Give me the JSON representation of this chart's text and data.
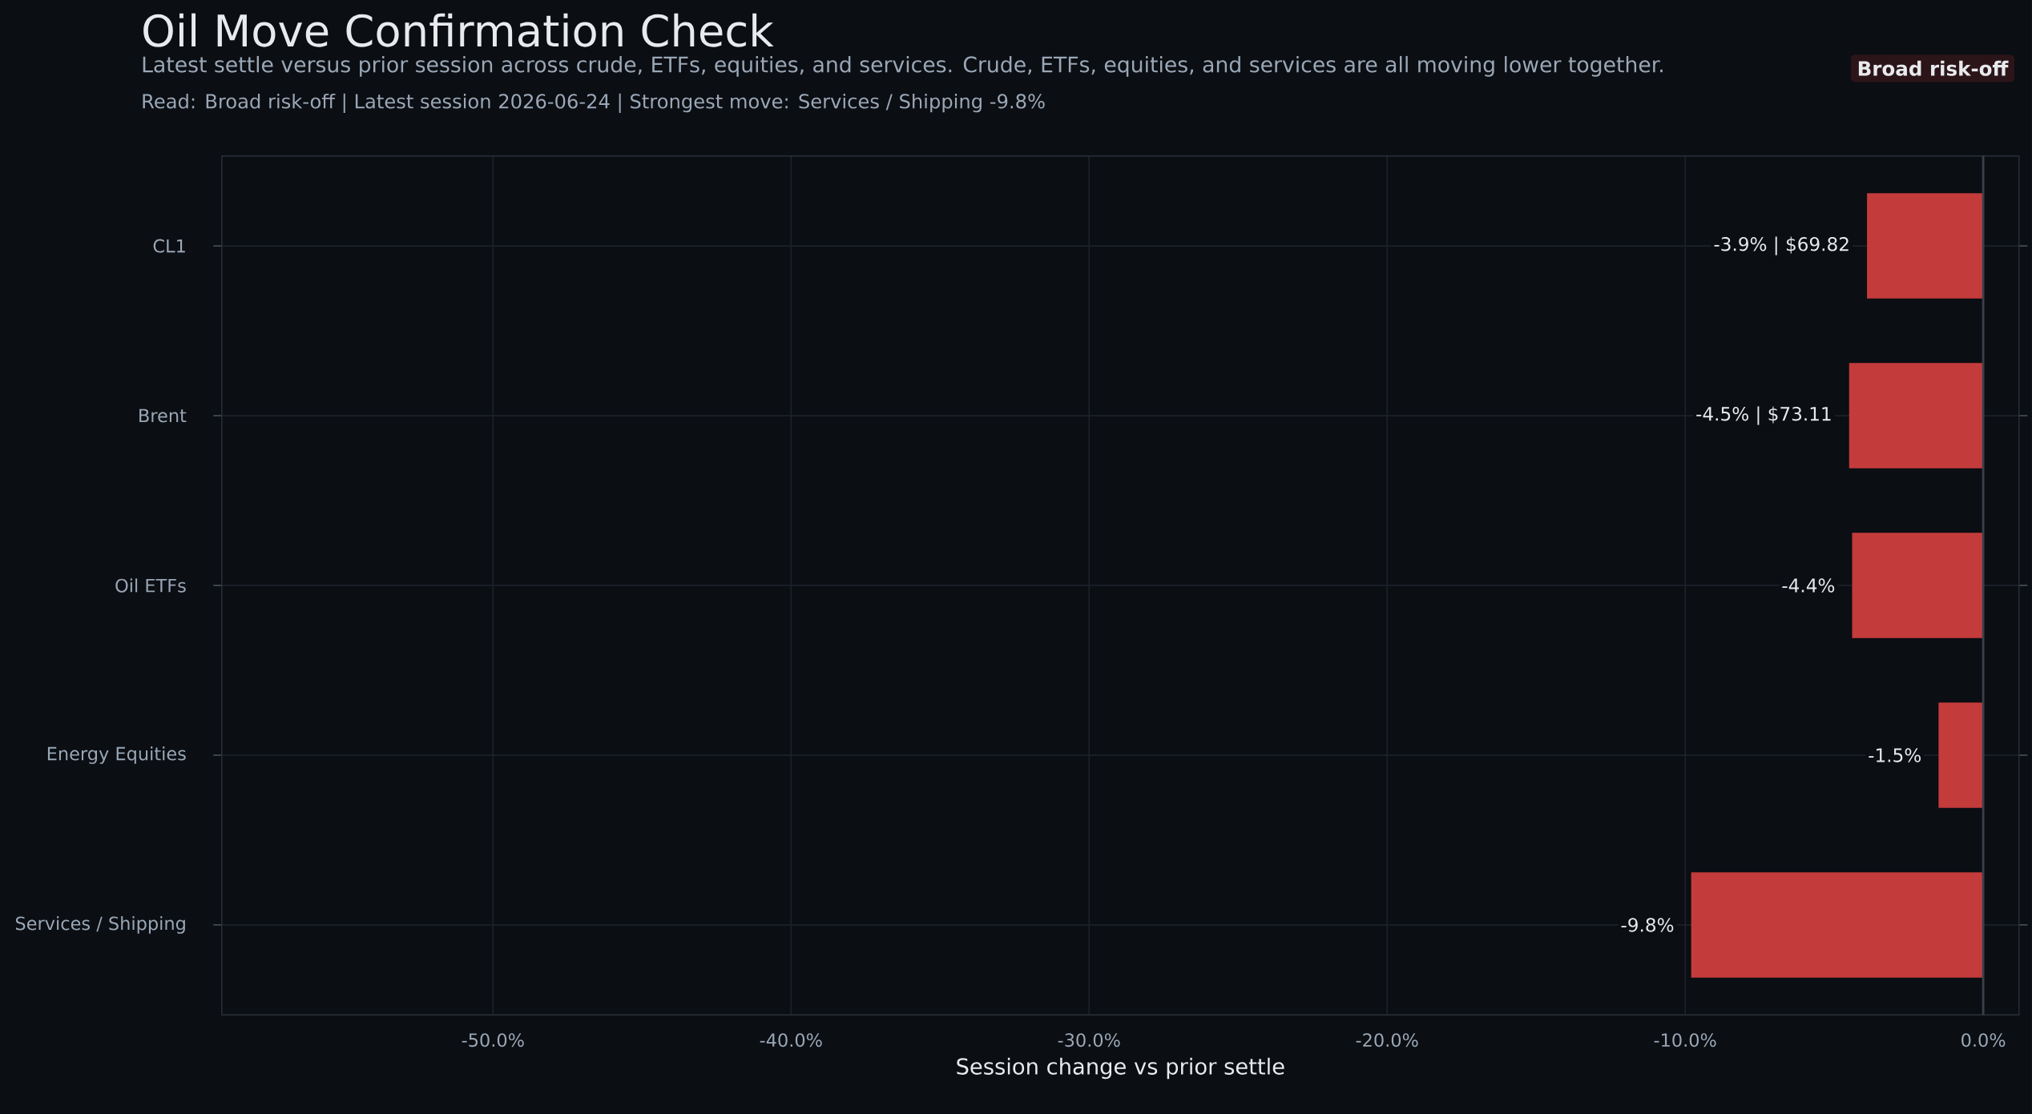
{
  "chart_data": {
    "type": "bar",
    "orientation": "horizontal",
    "title": "Oil Move Confirmation Check",
    "subtitle": "Latest settle versus prior session across crude, ETFs, equities, and services. Crude, ETFs, equities, and services are all moving lower together.",
    "annotations": [
      "Read: Broad risk-off  |  Latest session 2026-06-24  |  Strongest move: Services / Shipping -9.8%",
      "Broad risk-off"
    ],
    "categories": [
      "CL1",
      "Brent",
      "Oil ETFs",
      "Energy Equities",
      "Services / Shipping"
    ],
    "values": [
      -3.9,
      -4.5,
      -4.4,
      -1.5,
      -9.8
    ],
    "value_labels": [
      "-3.9% | $69.82",
      "-4.5% | $73.11",
      "-4.4%",
      "-1.5%",
      "-9.8%"
    ],
    "color": "#c43b3b",
    "xlabel": "Session change vs prior settle",
    "xlim": [
      -59.1,
      1.2
    ],
    "xticks": [
      {
        "value": -50,
        "label": "-50.0%"
      },
      {
        "value": -40,
        "label": "-40.0%"
      },
      {
        "value": -30,
        "label": "-30.0%"
      },
      {
        "value": -20,
        "label": "-20.0%"
      },
      {
        "value": -10,
        "label": "-10.0%"
      },
      {
        "value": 0,
        "label": "0.0%"
      }
    ],
    "grid": true
  }
}
